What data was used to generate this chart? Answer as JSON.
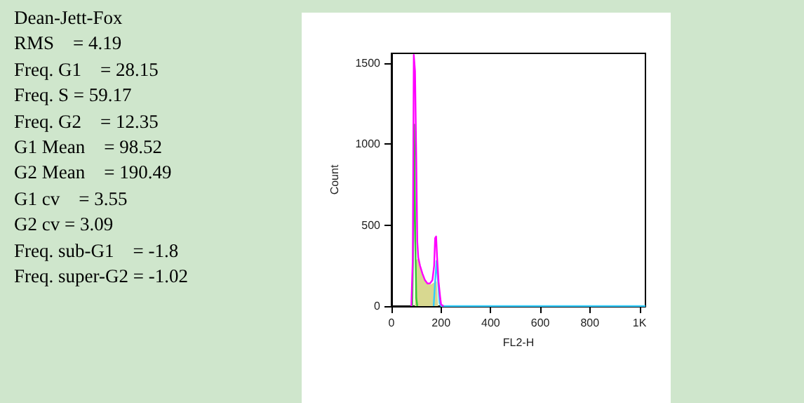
{
  "chart_data": [
    {
      "type": "other",
      "annotations": [
        "Dean-Jett-Fox",
        "RMS    = 4.19",
        "Freq. G1    = 28.15",
        "Freq. S = 59.17",
        "Freq. G2    = 12.35",
        "G1 Mean    = 98.52",
        "G2 Mean    = 190.49",
        "G1 cv    = 3.55",
        "G2 cv = 3.09",
        "Freq. sub-G1    = -1.8",
        "Freq. super-G2 = -1.02"
      ]
    },
    {
      "type": "line",
      "xlabel": "FL2-H",
      "ylabel": "Count",
      "xlim": [
        0,
        1024
      ],
      "xticks": [
        0,
        200,
        400,
        600,
        800,
        {
          "value": 1000,
          "label": "1K"
        }
      ],
      "ylim": [
        0,
        1560
      ],
      "yticks": [
        0,
        500,
        1000,
        1500
      ],
      "grid": false,
      "marker": "none",
      "line_style": "solid",
      "series": [
        {
          "type": "area",
          "color": "#d8d890",
          "x": [
            96,
            100,
            108,
            120,
            135,
            150,
            160,
            170,
            180,
            186
          ],
          "values": [
            0,
            280,
            290,
            220,
            160,
            130,
            130,
            140,
            150,
            0
          ]
        },
        {
          "color": "#33cc33",
          "x": [
            84,
            88,
            92,
            96,
            100,
            104
          ],
          "values": [
            0,
            420,
            1120,
            420,
            50,
            0
          ]
        },
        {
          "color": "#33ccff",
          "x": [
            170,
            176,
            182,
            188,
            194,
            200,
            1024
          ],
          "values": [
            0,
            150,
            280,
            150,
            20,
            0,
            0
          ]
        },
        {
          "color": "#ff00ff",
          "x": [
            80,
            86,
            90,
            95,
            100,
            104,
            108,
            115,
            125,
            135,
            145,
            155,
            165,
            172,
            176,
            180,
            184,
            190,
            196,
            200,
            210
          ],
          "values": [
            0,
            300,
            1550,
            1450,
            900,
            400,
            300,
            250,
            200,
            160,
            140,
            140,
            160,
            250,
            420,
            430,
            300,
            150,
            60,
            10,
            0
          ]
        }
      ]
    }
  ]
}
